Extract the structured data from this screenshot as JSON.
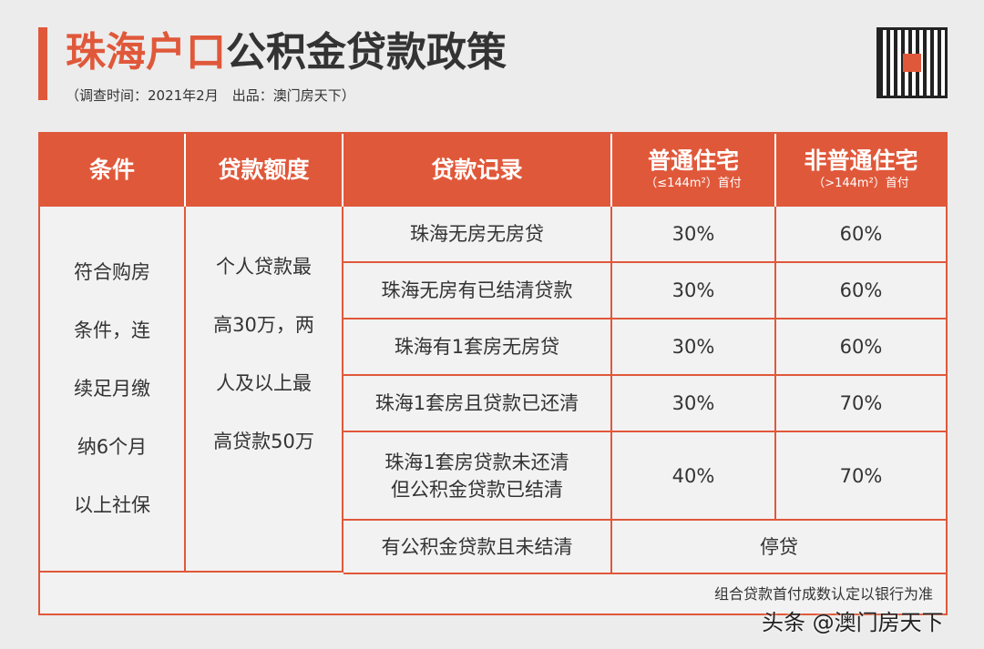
{
  "header": {
    "title_highlight": "珠海户口",
    "title_rest": "公积金贷款政策",
    "subtitle": "（调查时间：2021年2月　出品：澳门房天下）"
  },
  "table": {
    "columns": [
      {
        "label": "条件"
      },
      {
        "label": "贷款额度"
      },
      {
        "label": "贷款记录"
      },
      {
        "label": "普通住宅",
        "sub": "（≤144m²）首付"
      },
      {
        "label": "非普通住宅",
        "sub": "（>144m²）首付"
      }
    ],
    "condition": [
      "符合购房",
      "条件，连",
      "续足月缴",
      "纳6个月",
      "以上社保"
    ],
    "quota": [
      "个人贷款最",
      "高30万，两",
      "人及以上最",
      "高贷款50万"
    ],
    "rows": [
      [
        "珠海无房无房贷",
        "30%",
        "60%"
      ],
      [
        "珠海无房有已结清贷款",
        "30%",
        "60%"
      ],
      [
        "珠海有1套房无房贷",
        "30%",
        "60%"
      ],
      [
        "珠海1套房且贷款已还清",
        "30%",
        "70%"
      ],
      [
        "珠海1套房贷款未还清\n但公积金贷款已结清",
        "40%",
        "70%"
      ]
    ],
    "last_row": {
      "record": "有公积金贷款且未结清",
      "result": "停贷"
    },
    "footnote": "组合贷款首付成数认定以银行为准"
  },
  "watermark": "头条 @澳门房天下"
}
